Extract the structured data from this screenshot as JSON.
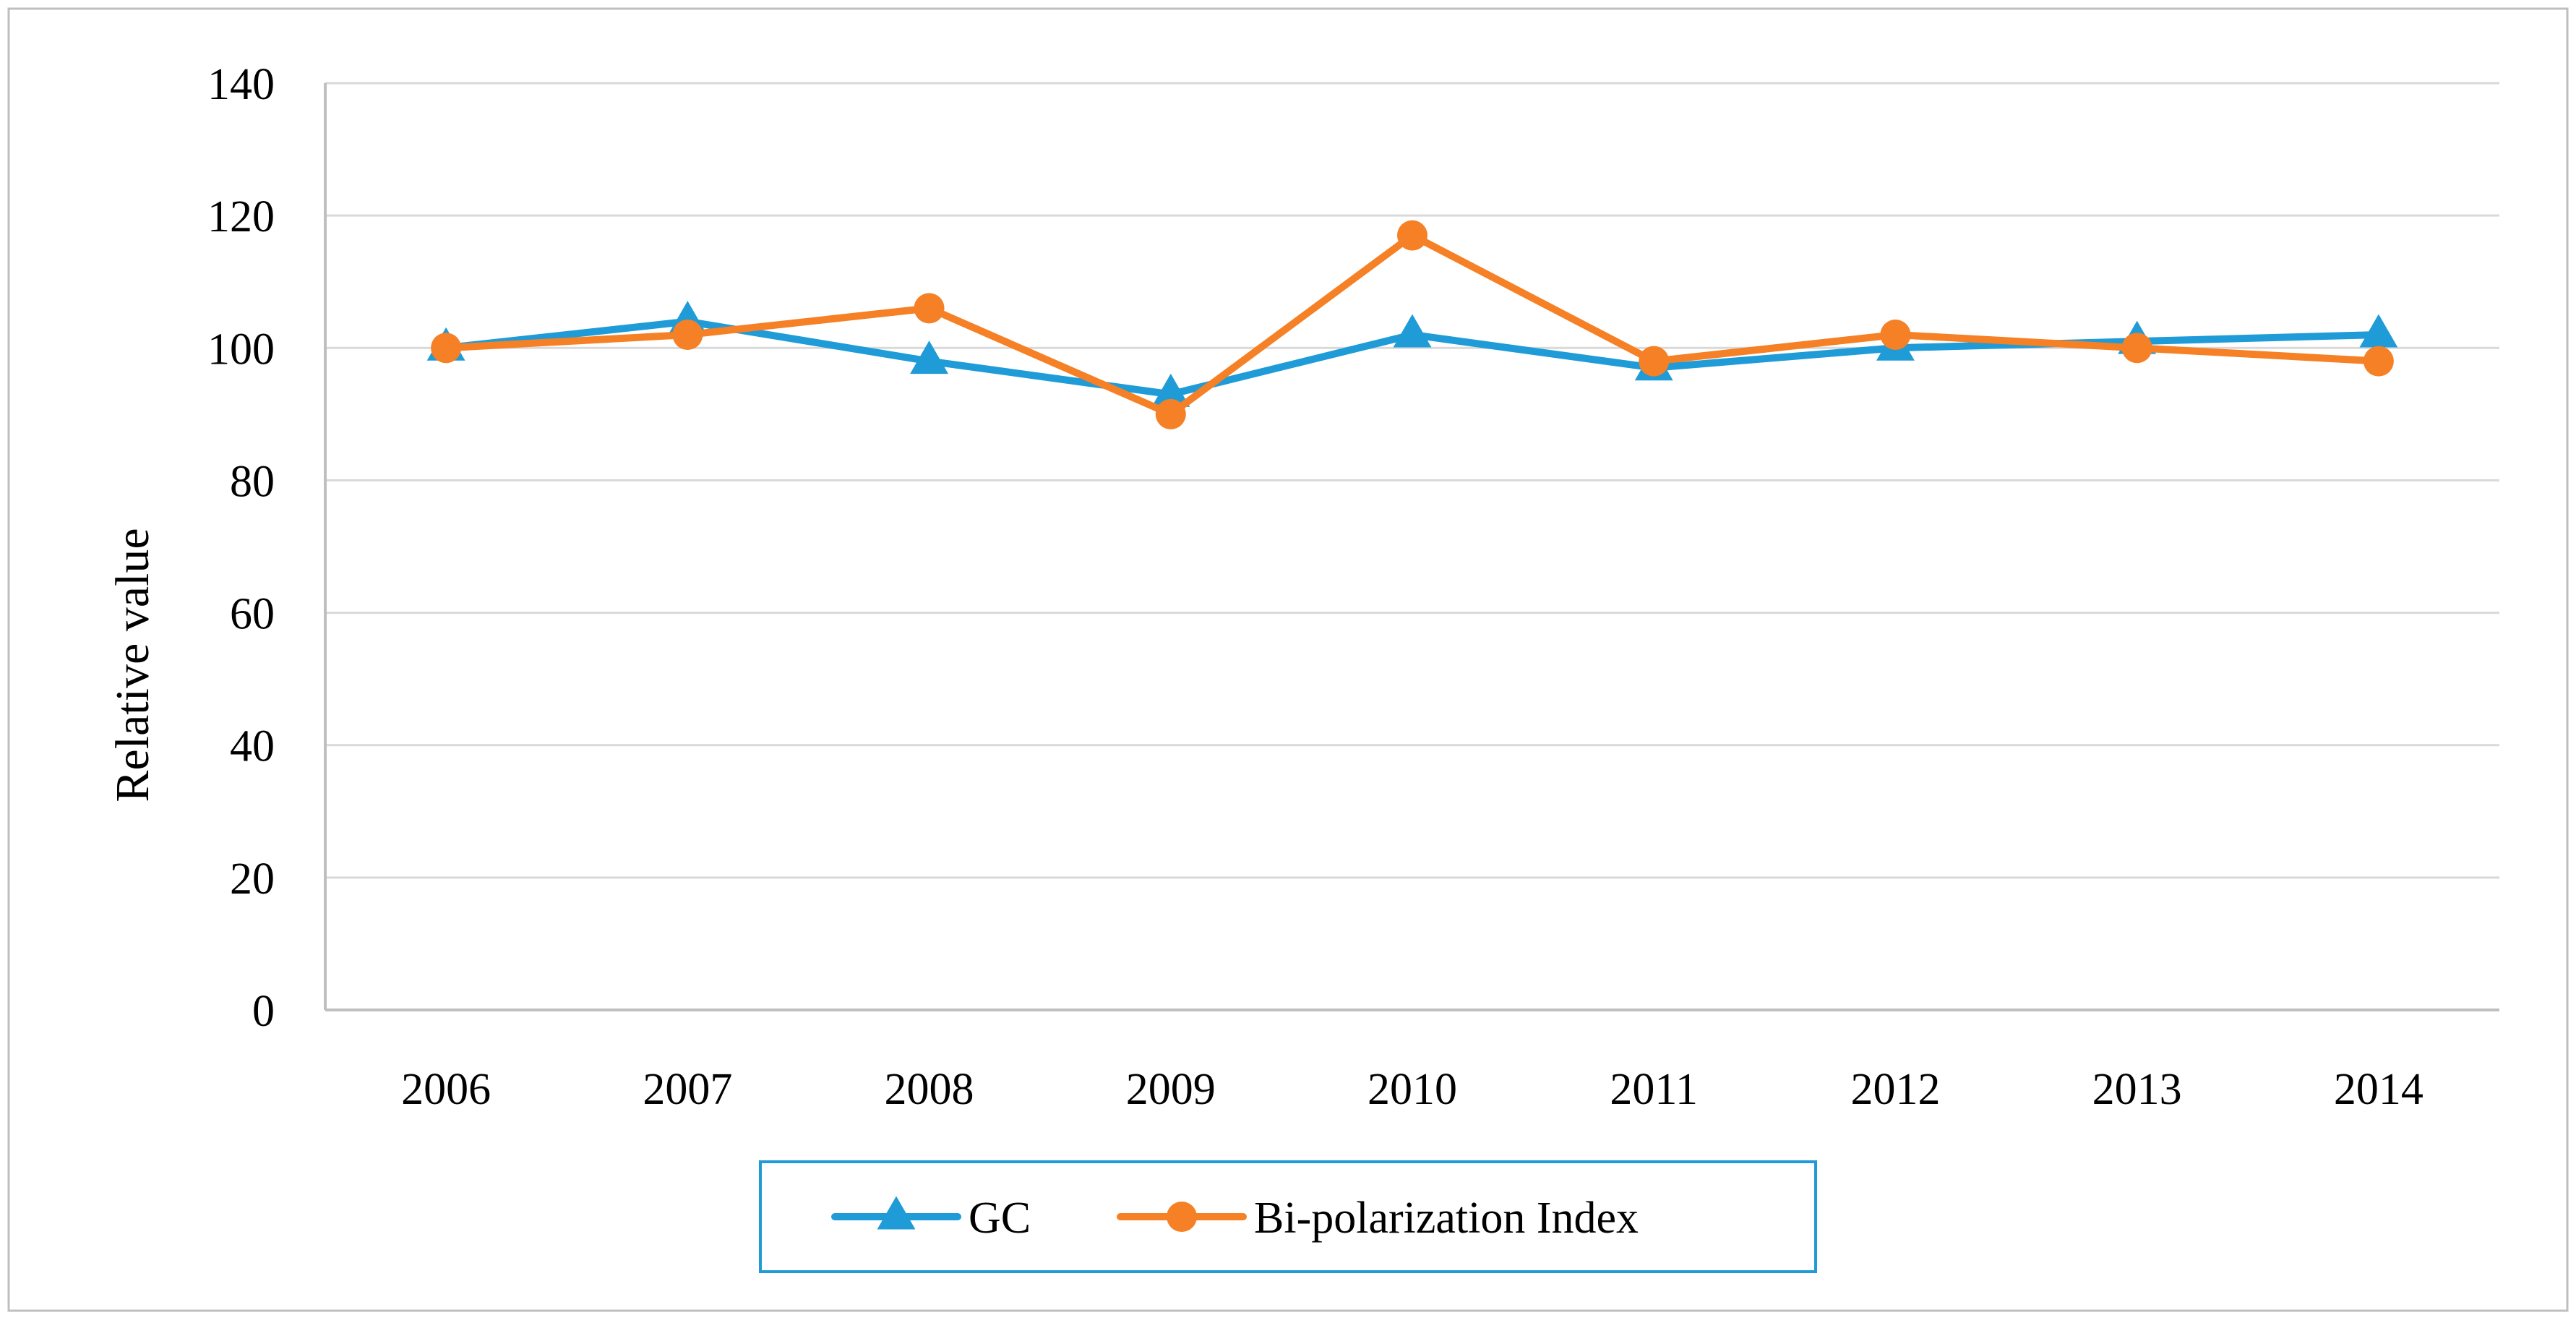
{
  "chart_data": {
    "type": "line",
    "title": "",
    "xlabel": "",
    "ylabel": "Relative  value",
    "categories": [
      "2006",
      "2007",
      "2008",
      "2009",
      "2010",
      "2011",
      "2012",
      "2013",
      "2014"
    ],
    "ylim": [
      0,
      140
    ],
    "yticks": [
      "0",
      "20",
      "40",
      "60",
      "80",
      "100",
      "120",
      "140"
    ],
    "grid": true,
    "legend": "bottom-center",
    "series": [
      {
        "name": "GC",
        "marker": "triangle",
        "color": "#1f9bd7",
        "values": [
          100,
          104,
          98,
          93,
          102,
          97,
          100,
          101,
          102
        ]
      },
      {
        "name": "Bi-polarization Index",
        "marker": "circle",
        "color": "#f58025",
        "values": [
          100,
          102,
          106,
          90,
          117,
          98,
          102,
          100,
          98
        ]
      }
    ]
  },
  "colors": {
    "gridline": "#d9d9d9",
    "axis": "#bfbfbf",
    "frame": "#bfbfbf",
    "legend_border": "#1f9bd7"
  }
}
